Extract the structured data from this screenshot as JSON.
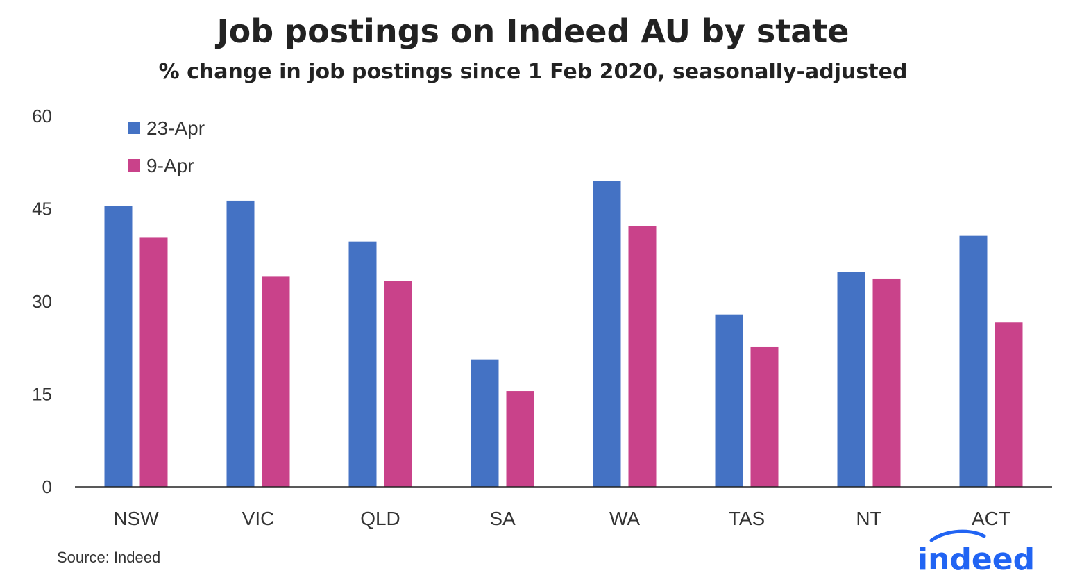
{
  "title": "Job postings on Indeed AU by state",
  "subtitle": "% change in job postings since 1 Feb 2020, seasonally-adjusted",
  "source": "Source: Indeed",
  "logo_text": "indeed",
  "colors": {
    "series1": "#4472c4",
    "series2": "#c9428a",
    "axis": "#222222",
    "text": "#333333",
    "logo": "#2164f3"
  },
  "chart_data": {
    "type": "bar",
    "categories": [
      "NSW",
      "VIC",
      "QLD",
      "SA",
      "WA",
      "TAS",
      "NT",
      "ACT"
    ],
    "series": [
      {
        "name": "23-Apr",
        "values": [
          45.5,
          46.3,
          39.7,
          20.6,
          49.5,
          27.9,
          34.8,
          40.6
        ]
      },
      {
        "name": "9-Apr",
        "values": [
          40.4,
          34.0,
          33.3,
          15.5,
          42.2,
          22.7,
          33.6,
          26.6
        ]
      }
    ],
    "y_ticks": [
      0,
      15,
      30,
      45,
      60
    ],
    "ylim": [
      0,
      60
    ],
    "grid": false,
    "legend_position": "top-left"
  }
}
